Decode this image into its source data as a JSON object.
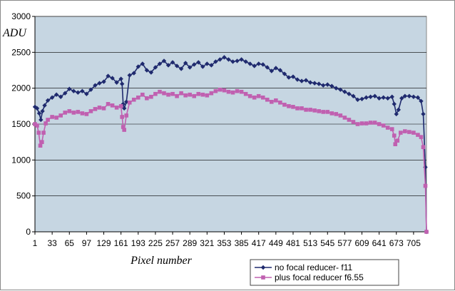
{
  "chart_data": {
    "type": "line",
    "title": "",
    "xlabel": "Pixel number",
    "ylabel": "ADU",
    "xlim": [
      1,
      729
    ],
    "ylim": [
      0,
      3000
    ],
    "y_ticks": [
      0,
      500,
      1000,
      1500,
      2000,
      2500,
      3000
    ],
    "x_ticks": [
      1,
      33,
      65,
      97,
      129,
      161,
      193,
      225,
      257,
      289,
      321,
      353,
      385,
      417,
      449,
      481,
      513,
      545,
      577,
      609,
      641,
      673,
      705
    ],
    "grid": true,
    "legend_position": "bottom-right",
    "plot_background": "#c6d6e2",
    "series": [
      {
        "name": "no focal reducer- f11",
        "color": "#1f2a6e",
        "marker": "diamond",
        "points": [
          [
            1,
            1740
          ],
          [
            5,
            1720
          ],
          [
            9,
            1650
          ],
          [
            12,
            1560
          ],
          [
            15,
            1680
          ],
          [
            19,
            1760
          ],
          [
            25,
            1830
          ],
          [
            33,
            1870
          ],
          [
            41,
            1910
          ],
          [
            49,
            1880
          ],
          [
            57,
            1930
          ],
          [
            65,
            1990
          ],
          [
            73,
            1960
          ],
          [
            81,
            1940
          ],
          [
            89,
            1960
          ],
          [
            97,
            1920
          ],
          [
            105,
            1980
          ],
          [
            113,
            2040
          ],
          [
            121,
            2070
          ],
          [
            129,
            2090
          ],
          [
            137,
            2170
          ],
          [
            145,
            2140
          ],
          [
            153,
            2080
          ],
          [
            161,
            2130
          ],
          [
            163,
            2060
          ],
          [
            165,
            1780
          ],
          [
            167,
            1720
          ],
          [
            171,
            1810
          ],
          [
            177,
            2180
          ],
          [
            185,
            2210
          ],
          [
            193,
            2300
          ],
          [
            201,
            2340
          ],
          [
            209,
            2250
          ],
          [
            217,
            2220
          ],
          [
            225,
            2290
          ],
          [
            233,
            2340
          ],
          [
            241,
            2380
          ],
          [
            249,
            2320
          ],
          [
            257,
            2360
          ],
          [
            265,
            2310
          ],
          [
            273,
            2270
          ],
          [
            281,
            2350
          ],
          [
            289,
            2290
          ],
          [
            297,
            2330
          ],
          [
            305,
            2360
          ],
          [
            313,
            2300
          ],
          [
            321,
            2340
          ],
          [
            329,
            2320
          ],
          [
            337,
            2370
          ],
          [
            345,
            2400
          ],
          [
            353,
            2430
          ],
          [
            361,
            2400
          ],
          [
            369,
            2370
          ],
          [
            377,
            2380
          ],
          [
            385,
            2400
          ],
          [
            393,
            2370
          ],
          [
            401,
            2340
          ],
          [
            409,
            2310
          ],
          [
            417,
            2340
          ],
          [
            425,
            2330
          ],
          [
            433,
            2290
          ],
          [
            441,
            2240
          ],
          [
            449,
            2280
          ],
          [
            457,
            2250
          ],
          [
            465,
            2200
          ],
          [
            473,
            2150
          ],
          [
            481,
            2160
          ],
          [
            489,
            2120
          ],
          [
            497,
            2100
          ],
          [
            505,
            2110
          ],
          [
            513,
            2080
          ],
          [
            521,
            2070
          ],
          [
            529,
            2060
          ],
          [
            537,
            2040
          ],
          [
            545,
            2050
          ],
          [
            553,
            2030
          ],
          [
            561,
            2000
          ],
          [
            569,
            1980
          ],
          [
            577,
            1950
          ],
          [
            585,
            1920
          ],
          [
            593,
            1890
          ],
          [
            601,
            1840
          ],
          [
            609,
            1850
          ],
          [
            617,
            1870
          ],
          [
            625,
            1880
          ],
          [
            633,
            1890
          ],
          [
            641,
            1860
          ],
          [
            649,
            1870
          ],
          [
            657,
            1860
          ],
          [
            665,
            1880
          ],
          [
            669,
            1780
          ],
          [
            673,
            1640
          ],
          [
            677,
            1700
          ],
          [
            683,
            1860
          ],
          [
            689,
            1890
          ],
          [
            697,
            1890
          ],
          [
            705,
            1880
          ],
          [
            713,
            1870
          ],
          [
            719,
            1820
          ],
          [
            723,
            1640
          ],
          [
            727,
            900
          ],
          [
            729,
            0
          ]
        ]
      },
      {
        "name": "plus focal reducer f6.55",
        "color": "#c060b0",
        "marker": "square",
        "points": [
          [
            1,
            1500
          ],
          [
            5,
            1480
          ],
          [
            8,
            1380
          ],
          [
            11,
            1200
          ],
          [
            14,
            1250
          ],
          [
            17,
            1380
          ],
          [
            21,
            1510
          ],
          [
            25,
            1560
          ],
          [
            33,
            1600
          ],
          [
            41,
            1590
          ],
          [
            49,
            1620
          ],
          [
            57,
            1660
          ],
          [
            65,
            1680
          ],
          [
            73,
            1660
          ],
          [
            81,
            1670
          ],
          [
            89,
            1650
          ],
          [
            97,
            1640
          ],
          [
            105,
            1680
          ],
          [
            113,
            1710
          ],
          [
            121,
            1730
          ],
          [
            129,
            1720
          ],
          [
            137,
            1780
          ],
          [
            145,
            1760
          ],
          [
            153,
            1730
          ],
          [
            161,
            1750
          ],
          [
            163,
            1600
          ],
          [
            165,
            1460
          ],
          [
            167,
            1420
          ],
          [
            171,
            1620
          ],
          [
            177,
            1800
          ],
          [
            185,
            1840
          ],
          [
            193,
            1870
          ],
          [
            201,
            1910
          ],
          [
            209,
            1860
          ],
          [
            217,
            1880
          ],
          [
            225,
            1920
          ],
          [
            233,
            1950
          ],
          [
            241,
            1930
          ],
          [
            249,
            1910
          ],
          [
            257,
            1920
          ],
          [
            265,
            1890
          ],
          [
            273,
            1930
          ],
          [
            281,
            1900
          ],
          [
            289,
            1910
          ],
          [
            297,
            1890
          ],
          [
            305,
            1920
          ],
          [
            313,
            1910
          ],
          [
            321,
            1900
          ],
          [
            329,
            1930
          ],
          [
            337,
            1960
          ],
          [
            345,
            1980
          ],
          [
            353,
            1970
          ],
          [
            361,
            1950
          ],
          [
            369,
            1940
          ],
          [
            377,
            1960
          ],
          [
            385,
            1950
          ],
          [
            393,
            1920
          ],
          [
            401,
            1890
          ],
          [
            409,
            1870
          ],
          [
            417,
            1890
          ],
          [
            425,
            1870
          ],
          [
            433,
            1840
          ],
          [
            441,
            1810
          ],
          [
            449,
            1830
          ],
          [
            457,
            1800
          ],
          [
            465,
            1770
          ],
          [
            473,
            1750
          ],
          [
            481,
            1740
          ],
          [
            489,
            1720
          ],
          [
            497,
            1720
          ],
          [
            505,
            1700
          ],
          [
            513,
            1700
          ],
          [
            521,
            1690
          ],
          [
            529,
            1680
          ],
          [
            537,
            1670
          ],
          [
            545,
            1670
          ],
          [
            553,
            1650
          ],
          [
            561,
            1640
          ],
          [
            569,
            1620
          ],
          [
            577,
            1590
          ],
          [
            585,
            1560
          ],
          [
            593,
            1530
          ],
          [
            601,
            1500
          ],
          [
            609,
            1510
          ],
          [
            617,
            1510
          ],
          [
            625,
            1520
          ],
          [
            633,
            1520
          ],
          [
            641,
            1500
          ],
          [
            649,
            1480
          ],
          [
            657,
            1450
          ],
          [
            665,
            1430
          ],
          [
            669,
            1340
          ],
          [
            671,
            1220
          ],
          [
            675,
            1270
          ],
          [
            681,
            1380
          ],
          [
            689,
            1400
          ],
          [
            697,
            1390
          ],
          [
            705,
            1380
          ],
          [
            713,
            1350
          ],
          [
            719,
            1320
          ],
          [
            723,
            1180
          ],
          [
            727,
            640
          ],
          [
            729,
            0
          ]
        ]
      }
    ]
  }
}
